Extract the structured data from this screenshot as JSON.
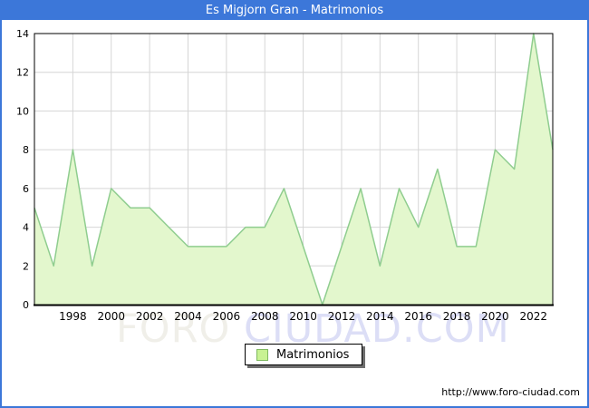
{
  "title": "Es Migjorn Gran - Matrimonios",
  "legend": {
    "label": "Matrimonios",
    "swatch_fill": "#c8f293",
    "swatch_border": "#7fb960"
  },
  "watermark": {
    "part1": "FORO",
    "part2": "CIUDAD.COM"
  },
  "footer": {
    "url": "http://www.foro-ciudad.com"
  },
  "colors": {
    "titlebar_blue": "#3c77d9",
    "frame_border_blue": "#3c77d9",
    "area_fill": "#e3f7cd",
    "line_green": "#8fcd8f",
    "grid_gray": "#d6d6d6",
    "axis_black": "#000000",
    "tick_text": "#000000"
  },
  "chart_data": {
    "type": "area",
    "title": "Es Migjorn Gran - Matrimonios",
    "series_name": "Matrimonios",
    "x": [
      1996,
      1997,
      1998,
      1999,
      2000,
      2001,
      2002,
      2003,
      2004,
      2005,
      2006,
      2007,
      2008,
      2009,
      2010,
      2011,
      2012,
      2013,
      2014,
      2015,
      2016,
      2017,
      2018,
      2019,
      2020,
      2021,
      2022,
      2023
    ],
    "values": [
      5,
      2,
      8,
      2,
      6,
      5,
      5,
      4,
      3,
      3,
      3,
      4,
      4,
      6,
      3,
      0,
      3,
      6,
      2,
      6,
      4,
      7,
      3,
      3,
      8,
      7,
      14,
      8
    ],
    "xlim": [
      1996,
      2023
    ],
    "ylim": [
      0,
      14
    ],
    "y_ticks": [
      0,
      2,
      4,
      6,
      8,
      10,
      12,
      14
    ],
    "x_ticks": [
      1998,
      2000,
      2002,
      2004,
      2006,
      2008,
      2010,
      2012,
      2014,
      2016,
      2018,
      2020,
      2022
    ],
    "grid": true,
    "legend_position": "bottom"
  }
}
